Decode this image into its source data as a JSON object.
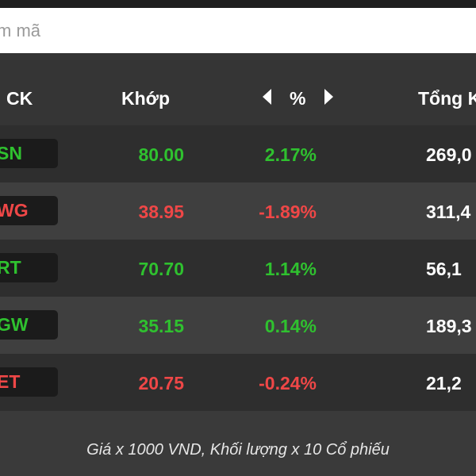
{
  "search": {
    "placeholder": "m mã"
  },
  "header": {
    "ck": "CK",
    "khop": "Khớp",
    "pct": "%",
    "tong": "Tổng K"
  },
  "rows": [
    {
      "ticker": "SN",
      "price": "80.00",
      "change": "2.17%",
      "volume": "269,0",
      "trend": "up"
    },
    {
      "ticker": "WG",
      "price": "38.95",
      "change": "-1.89%",
      "volume": "311,4",
      "trend": "down"
    },
    {
      "ticker": "RT",
      "price": "70.70",
      "change": "1.14%",
      "volume": "56,1",
      "trend": "up"
    },
    {
      "ticker": "GW",
      "price": "35.15",
      "change": "0.14%",
      "volume": "189,3",
      "trend": "up"
    },
    {
      "ticker": "ET",
      "price": "20.75",
      "change": "-0.24%",
      "volume": "21,2",
      "trend": "down"
    }
  ],
  "footer": {
    "note": "Giá x 1000 VND, Khối lượng x 10 Cổ phiếu"
  },
  "colors": {
    "up": "#2fc12f",
    "down": "#ef4747",
    "background": "#2b2b2b",
    "header": "#353535"
  },
  "icons": {
    "prev": "caret-left-icon",
    "next": "caret-right-icon"
  }
}
